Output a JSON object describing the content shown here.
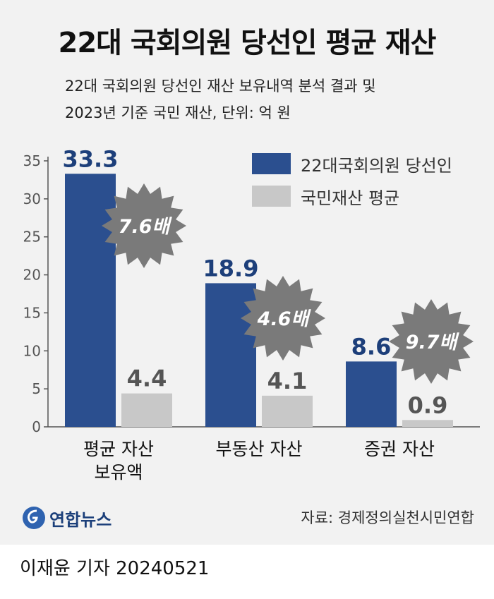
{
  "title": "22대 국회의원 당선인 평균 재산",
  "subtitle_line1": "22대 국회의원 당선인 재산 보유내역 분석 결과 및",
  "subtitle_line2": "2023년 기준 국민 재산, 단위: 억 원",
  "legend": [
    "22대국회의원 당선인",
    "국민재산 평균"
  ],
  "source": "자료: 경제정의실천시민연합",
  "logo": "연합뉴스",
  "byline": "이재윤 기자  20240521",
  "colors": {
    "series1": "#2b4f8f",
    "series2": "#c8c8c8",
    "value1": "#1d3f7a",
    "value2": "#555555",
    "badge": "#7a7a7a"
  },
  "chart_data": {
    "type": "bar",
    "categories": [
      [
        "평균 자산",
        "보유액"
      ],
      [
        "부동산 자산"
      ],
      [
        "증권 자산"
      ]
    ],
    "series": [
      {
        "name": "22대국회의원 당선인",
        "values": [
          33.3,
          18.9,
          8.6
        ]
      },
      {
        "name": "국민재산 평균",
        "values": [
          4.4,
          4.1,
          0.9
        ]
      }
    ],
    "value_labels": [
      [
        "33.3",
        "18.9",
        "8.6"
      ],
      [
        "4.4",
        "4.1",
        "0.9"
      ]
    ],
    "ratio_badges": [
      "7.6배",
      "4.6배",
      "9.7배"
    ],
    "yticks": [
      0,
      5,
      10,
      15,
      20,
      25,
      30,
      35
    ],
    "ylim": [
      0,
      35
    ],
    "grid": false,
    "legend_position": "top-right"
  }
}
